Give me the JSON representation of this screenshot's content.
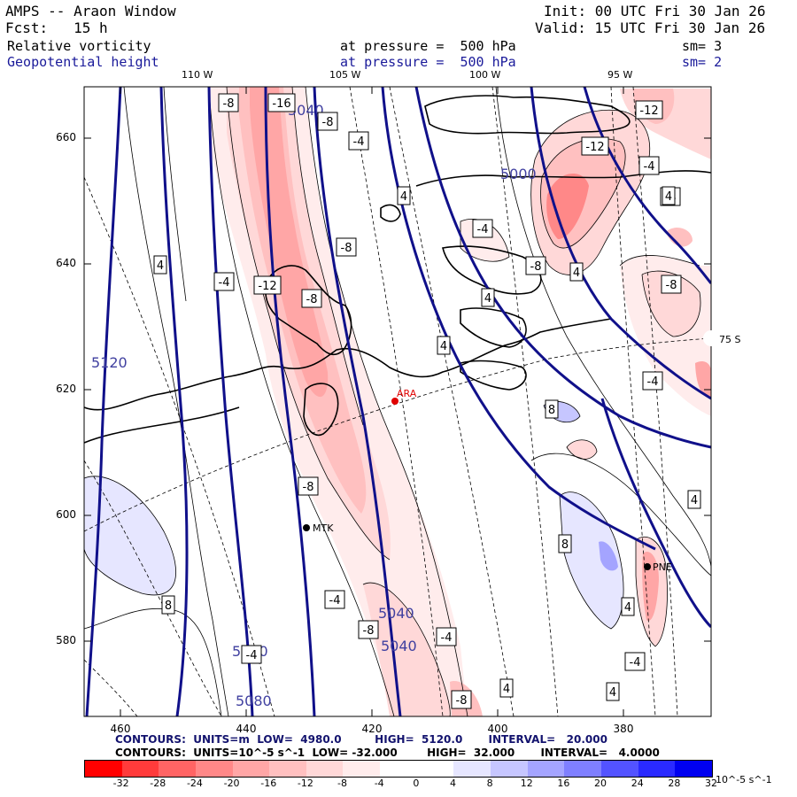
{
  "header": {
    "model": "AMPS -- Araon Window",
    "init": "Init: 00 UTC Fri 30 Jan 26",
    "fcst": "Fcst:   15 h",
    "valid": "Valid: 15 UTC Fri 30 Jan 26",
    "field1_name": "Relative vorticity",
    "field1_pressure": "at pressure =  500 hPa",
    "field1_sm": "sm= 3",
    "field2_name": "Geopotential height",
    "field2_pressure": "at pressure =  500 hPa",
    "field2_sm": "sm= 2"
  },
  "map": {
    "lon_labels": [
      "110 W",
      "105 W",
      "100 W",
      "95 W"
    ],
    "lat_label": "75 S",
    "y_ticks": [
      "660",
      "640",
      "620",
      "600",
      "580"
    ],
    "x_ticks": [
      "460",
      "440",
      "420",
      "400",
      "380"
    ],
    "stations": [
      {
        "name": "ARA",
        "color": "#e00000"
      },
      {
        "name": "MTK",
        "color": "#000000"
      },
      {
        "name": "PNE",
        "color": "#000000"
      }
    ],
    "height_labels": [
      "5040",
      "5000",
      "5120",
      "5040",
      "5040",
      "5080",
      "5080"
    ],
    "vort_labels": [
      "-8",
      "-16",
      "-8",
      "-4",
      "4",
      "-8",
      "-4",
      "-12",
      "-8",
      "-4",
      "4",
      "4",
      "-12",
      "-12",
      "-4",
      "-4",
      "-8",
      "4",
      "-8",
      "-4",
      "-8",
      "4",
      "8",
      "4",
      "-4",
      "8",
      "4",
      "4",
      "-4",
      "4",
      "-8",
      "-4",
      "-8",
      "-4",
      "4",
      "8"
    ]
  },
  "footer": {
    "line1": "CONTOURS:  UNITS=m  LOW=  4980.0         HIGH=  5120.0       INTERVAL=   20.000",
    "line2": "CONTOURS:  UNITS=10^-5 s^-1  LOW= -32.000        HIGH=  32.000       INTERVAL=   4.0000"
  },
  "colorbar": {
    "colors": [
      "#ff0000",
      "#ff3b3b",
      "#ff6464",
      "#ff8888",
      "#ffa6a6",
      "#ffc0c0",
      "#ffd8d8",
      "#ffecec",
      "#ffffff",
      "#ffffff",
      "#e6e6ff",
      "#c6c6ff",
      "#a4a4ff",
      "#7f7fff",
      "#5353ff",
      "#2a2aff",
      "#0000f0"
    ],
    "labels": [
      "-32",
      "-28",
      "-24",
      "-20",
      "-16",
      "-12",
      "-8",
      "-4",
      "0",
      "4",
      "8",
      "12",
      "16",
      "20",
      "24",
      "28",
      "32"
    ],
    "unit": "10^-5 s^-1"
  }
}
